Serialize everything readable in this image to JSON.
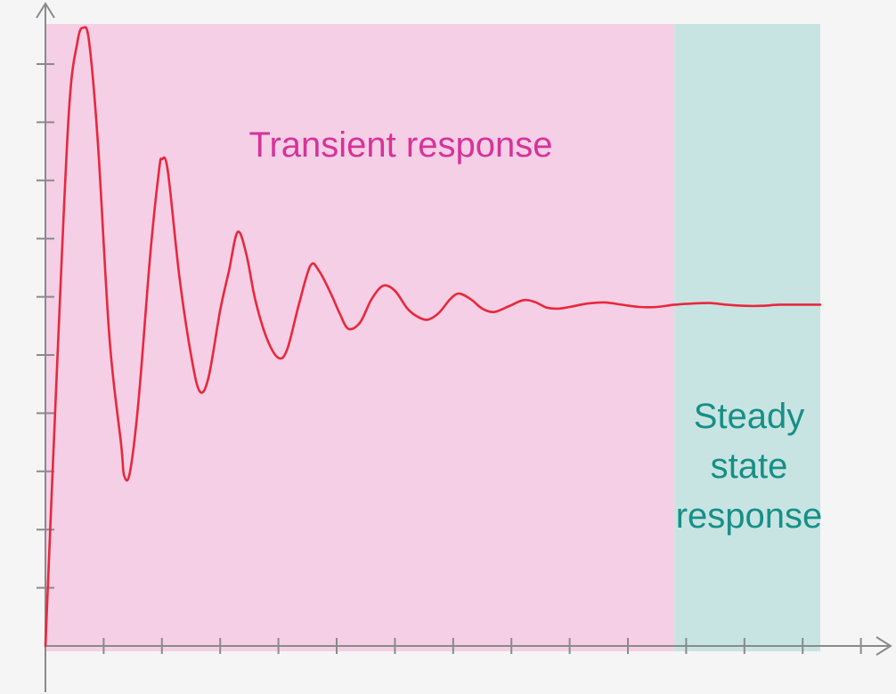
{
  "chart_data": {
    "type": "line",
    "title": "",
    "xlabel": "",
    "ylabel": "",
    "grid": false,
    "xlim": [
      0,
      15
    ],
    "ylim": [
      0,
      11
    ],
    "x_ticks": 15,
    "y_ticks": 11,
    "regions": [
      {
        "name": "transient",
        "label": "Transient response",
        "x_range": [
          0,
          10.8
        ],
        "color": "#f4cfe6",
        "label_color": "#d6339a"
      },
      {
        "name": "steady",
        "label_lines": [
          "Steady",
          "state",
          "response"
        ],
        "x_range": [
          10.8,
          13.3
        ],
        "color": "#c7e4e3",
        "label_color": "#178f86"
      }
    ],
    "series": [
      {
        "color": "#e8283c",
        "points": [
          [
            0.0,
            0.0
          ],
          [
            0.2,
            5.0
          ],
          [
            0.4,
            9.5
          ],
          [
            0.55,
            10.8
          ],
          [
            0.65,
            11.05
          ],
          [
            0.75,
            10.8
          ],
          [
            0.9,
            9.0
          ],
          [
            1.1,
            5.5
          ],
          [
            1.3,
            3.6
          ],
          [
            1.35,
            3.05
          ],
          [
            1.45,
            3.1
          ],
          [
            1.6,
            4.4
          ],
          [
            1.8,
            7.0
          ],
          [
            1.95,
            8.5
          ],
          [
            2.0,
            8.7
          ],
          [
            2.1,
            8.5
          ],
          [
            2.3,
            6.6
          ],
          [
            2.5,
            5.2
          ],
          [
            2.65,
            4.55
          ],
          [
            2.8,
            4.8
          ],
          [
            3.0,
            6.0
          ],
          [
            3.15,
            6.7
          ],
          [
            3.3,
            7.4
          ],
          [
            3.45,
            7.0
          ],
          [
            3.6,
            6.2
          ],
          [
            3.8,
            5.5
          ],
          [
            4.0,
            5.15
          ],
          [
            4.15,
            5.3
          ],
          [
            4.35,
            6.1
          ],
          [
            4.55,
            6.8
          ],
          [
            4.7,
            6.7
          ],
          [
            4.9,
            6.3
          ],
          [
            5.05,
            5.95
          ],
          [
            5.2,
            5.67
          ],
          [
            5.4,
            5.78
          ],
          [
            5.6,
            6.2
          ],
          [
            5.8,
            6.44
          ],
          [
            6.0,
            6.35
          ],
          [
            6.2,
            6.05
          ],
          [
            6.35,
            5.91
          ],
          [
            6.55,
            5.83
          ],
          [
            6.75,
            5.95
          ],
          [
            6.95,
            6.2
          ],
          [
            7.1,
            6.3
          ],
          [
            7.3,
            6.2
          ],
          [
            7.5,
            6.03
          ],
          [
            7.7,
            5.97
          ],
          [
            7.95,
            6.07
          ],
          [
            8.2,
            6.18
          ],
          [
            8.4,
            6.15
          ],
          [
            8.6,
            6.05
          ],
          [
            8.8,
            6.03
          ],
          [
            9.0,
            6.06
          ],
          [
            9.3,
            6.12
          ],
          [
            9.6,
            6.14
          ],
          [
            9.9,
            6.1
          ],
          [
            10.2,
            6.06
          ],
          [
            10.5,
            6.06
          ],
          [
            10.8,
            6.1
          ],
          [
            11.1,
            6.12
          ],
          [
            11.4,
            6.13
          ],
          [
            11.7,
            6.1
          ],
          [
            12.0,
            6.08
          ],
          [
            12.3,
            6.08
          ],
          [
            12.6,
            6.1
          ],
          [
            13.0,
            6.1
          ],
          [
            13.3,
            6.1
          ]
        ]
      }
    ]
  }
}
